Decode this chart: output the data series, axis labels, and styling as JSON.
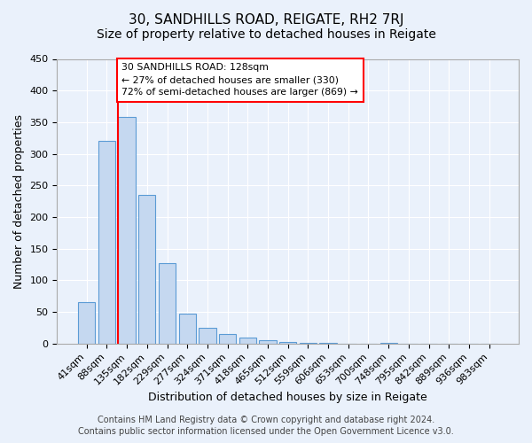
{
  "title": "30, SANDHILLS ROAD, REIGATE, RH2 7RJ",
  "subtitle": "Size of property relative to detached houses in Reigate",
  "xlabel": "Distribution of detached houses by size in Reigate",
  "ylabel": "Number of detached properties",
  "bin_labels": [
    "41sqm",
    "88sqm",
    "135sqm",
    "182sqm",
    "229sqm",
    "277sqm",
    "324sqm",
    "371sqm",
    "418sqm",
    "465sqm",
    "512sqm",
    "559sqm",
    "606sqm",
    "653sqm",
    "700sqm",
    "748sqm",
    "795sqm",
    "842sqm",
    "889sqm",
    "936sqm",
    "983sqm"
  ],
  "bar_values": [
    65,
    320,
    358,
    235,
    127,
    47,
    25,
    15,
    10,
    5,
    2,
    1,
    1,
    0,
    0,
    1,
    0,
    0,
    0,
    0,
    0
  ],
  "bar_color": "#c5d8f0",
  "bar_edge_color": "#5b9bd5",
  "ylim": [
    0,
    450
  ],
  "yticks": [
    0,
    50,
    100,
    150,
    200,
    250,
    300,
    350,
    400,
    450
  ],
  "red_line_bin": 2,
  "annotation_title": "30 SANDHILLS ROAD: 128sqm",
  "annotation_line1": "← 27% of detached houses are smaller (330)",
  "annotation_line2": "72% of semi-detached houses are larger (869) →",
  "footer_line1": "Contains HM Land Registry data © Crown copyright and database right 2024.",
  "footer_line2": "Contains public sector information licensed under the Open Government Licence v3.0.",
  "background_color": "#eaf1fb",
  "plot_bg_color": "#eaf1fb",
  "grid_color": "#ffffff",
  "title_fontsize": 11,
  "subtitle_fontsize": 10,
  "axis_fontsize": 9,
  "tick_fontsize": 8,
  "footer_fontsize": 7
}
